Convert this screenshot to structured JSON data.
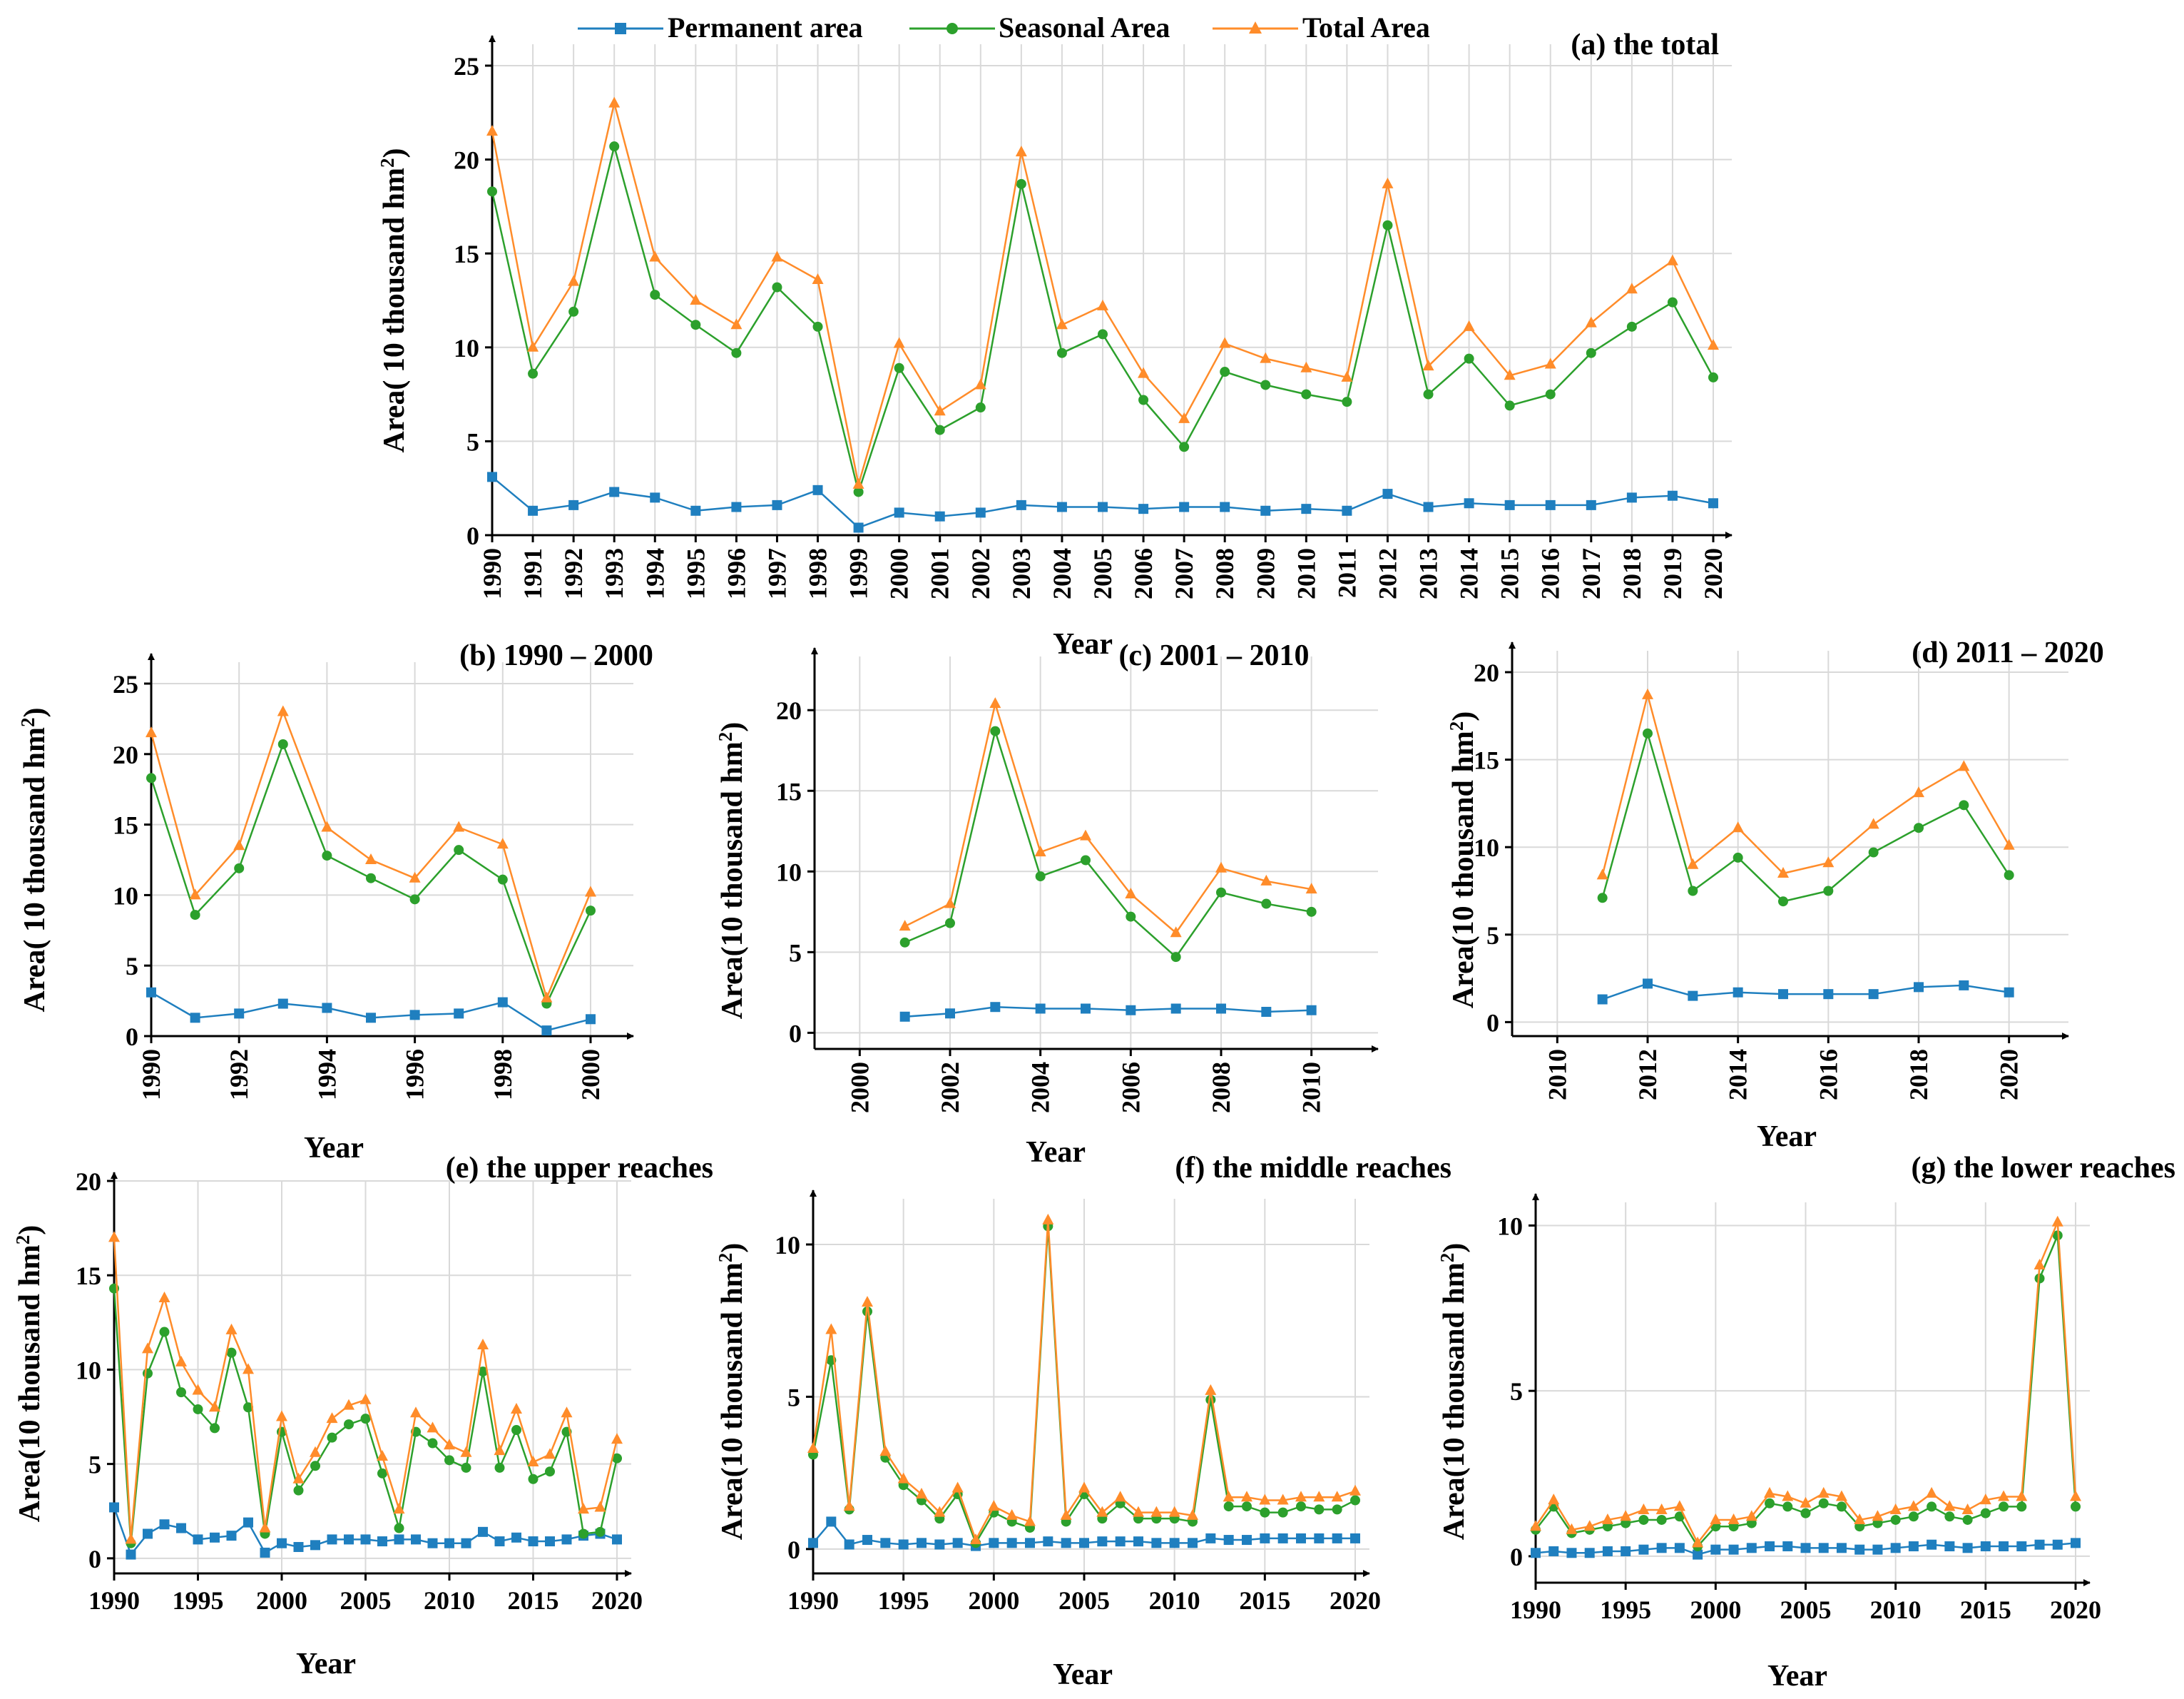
{
  "legend": {
    "items": [
      {
        "label": "Permanent area",
        "color": "#1f7fbf",
        "marker": "square"
      },
      {
        "label": "Seasonal Area",
        "color": "#2ca02c",
        "marker": "circle"
      },
      {
        "label": "Total Area",
        "color": "#ff8c2a",
        "marker": "triangle"
      }
    ]
  },
  "chart_data": [
    {
      "id": "a",
      "type": "line",
      "title": "(a) the total",
      "xlabel": "Year",
      "ylabel": "Area( 10 thousand hm",
      "xlim": [
        1990,
        2020
      ],
      "ylim": [
        0,
        25
      ],
      "xticks": [
        1990,
        1991,
        1992,
        1993,
        1994,
        1995,
        1996,
        1997,
        1998,
        1999,
        2000,
        2001,
        2002,
        2003,
        2004,
        2005,
        2006,
        2007,
        2008,
        2009,
        2010,
        2011,
        2012,
        2013,
        2014,
        2015,
        2016,
        2017,
        2018,
        2019,
        2020
      ],
      "yticks": [
        0,
        5,
        10,
        15,
        20,
        25
      ],
      "grid": true,
      "x": [
        1990,
        1991,
        1992,
        1993,
        1994,
        1995,
        1996,
        1997,
        1998,
        1999,
        2000,
        2001,
        2002,
        2003,
        2004,
        2005,
        2006,
        2007,
        2008,
        2009,
        2010,
        2011,
        2012,
        2013,
        2014,
        2015,
        2016,
        2017,
        2018,
        2019,
        2020
      ],
      "series": [
        {
          "name": "Permanent area",
          "values": [
            3.1,
            1.3,
            1.6,
            2.3,
            2.0,
            1.3,
            1.5,
            1.6,
            2.4,
            0.4,
            1.2,
            1.0,
            1.2,
            1.6,
            1.5,
            1.5,
            1.4,
            1.5,
            1.5,
            1.3,
            1.4,
            1.3,
            2.2,
            1.5,
            1.7,
            1.6,
            1.6,
            1.6,
            2.0,
            2.1,
            1.7
          ]
        },
        {
          "name": "Seasonal Area",
          "values": [
            18.3,
            8.6,
            11.9,
            20.7,
            12.8,
            11.2,
            9.7,
            13.2,
            11.1,
            2.3,
            8.9,
            5.6,
            6.8,
            18.7,
            9.7,
            10.7,
            7.2,
            4.7,
            8.7,
            8.0,
            7.5,
            7.1,
            16.5,
            7.5,
            9.4,
            6.9,
            7.5,
            9.7,
            11.1,
            12.4,
            8.4
          ]
        },
        {
          "name": "Total Area",
          "values": [
            21.5,
            10.0,
            13.5,
            23.0,
            14.8,
            12.5,
            11.2,
            14.8,
            13.6,
            2.7,
            10.2,
            6.6,
            8.0,
            20.4,
            11.2,
            12.2,
            8.6,
            6.2,
            10.2,
            9.4,
            8.9,
            8.4,
            18.7,
            9.0,
            11.1,
            8.5,
            9.1,
            11.3,
            13.1,
            14.6,
            10.1
          ]
        }
      ]
    },
    {
      "id": "b",
      "type": "line",
      "title": "(b) 1990 – 2000",
      "xlabel": "Year",
      "ylabel": "Area( 10 thousand hm",
      "xlim": [
        1990,
        2000
      ],
      "ylim": [
        0,
        25
      ],
      "xticks": [
        1990,
        1992,
        1994,
        1996,
        1998,
        2000
      ],
      "yticks": [
        0,
        5,
        10,
        15,
        20,
        25
      ],
      "grid": true,
      "x": [
        1990,
        1991,
        1992,
        1993,
        1994,
        1995,
        1996,
        1997,
        1998,
        1999,
        2000
      ],
      "series": [
        {
          "name": "Permanent area",
          "values": [
            3.1,
            1.3,
            1.6,
            2.3,
            2.0,
            1.3,
            1.5,
            1.6,
            2.4,
            0.4,
            1.2
          ]
        },
        {
          "name": "Seasonal Area",
          "values": [
            18.3,
            8.6,
            11.9,
            20.7,
            12.8,
            11.2,
            9.7,
            13.2,
            11.1,
            2.3,
            8.9
          ]
        },
        {
          "name": "Total Area",
          "values": [
            21.5,
            10.0,
            13.5,
            23.0,
            14.8,
            12.5,
            11.2,
            14.8,
            13.6,
            2.7,
            10.2
          ]
        }
      ]
    },
    {
      "id": "c",
      "type": "line",
      "title": "(c) 2001 – 2010",
      "xlabel": "Year",
      "ylabel": "Area(10 thousand hm",
      "xlim": [
        1999,
        2011
      ],
      "ylim": [
        -1,
        22
      ],
      "xticks": [
        2000,
        2002,
        2004,
        2006,
        2008,
        2010
      ],
      "yticks": [
        0,
        5,
        10,
        15,
        20
      ],
      "grid": true,
      "x": [
        2001,
        2002,
        2003,
        2004,
        2005,
        2006,
        2007,
        2008,
        2009,
        2010
      ],
      "series": [
        {
          "name": "Permanent area",
          "values": [
            1.0,
            1.2,
            1.6,
            1.5,
            1.5,
            1.4,
            1.5,
            1.5,
            1.3,
            1.4
          ]
        },
        {
          "name": "Seasonal Area",
          "values": [
            5.6,
            6.8,
            18.7,
            9.7,
            10.7,
            7.2,
            4.7,
            8.7,
            8.0,
            7.5
          ]
        },
        {
          "name": "Total Area",
          "values": [
            6.6,
            8.0,
            20.4,
            11.2,
            12.2,
            8.6,
            6.2,
            10.2,
            9.4,
            8.9
          ]
        }
      ]
    },
    {
      "id": "d",
      "type": "line",
      "title": "(d) 2011 – 2020",
      "xlabel": "Year",
      "ylabel": "Area(10 thousand hm",
      "xlim": [
        2009,
        2021
      ],
      "ylim": [
        -0.8,
        20
      ],
      "xticks": [
        2010,
        2012,
        2014,
        2016,
        2018,
        2020
      ],
      "yticks": [
        0,
        5,
        10,
        15,
        20
      ],
      "grid": true,
      "x": [
        2011,
        2012,
        2013,
        2014,
        2015,
        2016,
        2017,
        2018,
        2019,
        2020
      ],
      "series": [
        {
          "name": "Permanent area",
          "values": [
            1.3,
            2.2,
            1.5,
            1.7,
            1.6,
            1.6,
            1.6,
            2.0,
            2.1,
            1.7
          ]
        },
        {
          "name": "Seasonal Area",
          "values": [
            7.1,
            16.5,
            7.5,
            9.4,
            6.9,
            7.5,
            9.7,
            11.1,
            12.4,
            8.4
          ]
        },
        {
          "name": "Total Area",
          "values": [
            8.4,
            18.7,
            9.0,
            11.1,
            8.5,
            9.1,
            11.3,
            13.1,
            14.6,
            10.1
          ]
        }
      ]
    },
    {
      "id": "e",
      "type": "line",
      "title": "(e) the upper reaches",
      "xlabel": "Year",
      "ylabel": "Area(10 thousand hm",
      "xlim": [
        1990,
        2020
      ],
      "ylim": [
        -0.8,
        20
      ],
      "xticks": [
        1990,
        1995,
        2000,
        2005,
        2010,
        2015,
        2020
      ],
      "yticks": [
        0,
        5,
        10,
        15,
        20
      ],
      "grid": true,
      "x": [
        1990,
        1991,
        1992,
        1993,
        1994,
        1995,
        1996,
        1997,
        1998,
        1999,
        2000,
        2001,
        2002,
        2003,
        2004,
        2005,
        2006,
        2007,
        2008,
        2009,
        2010,
        2011,
        2012,
        2013,
        2014,
        2015,
        2016,
        2017,
        2018,
        2019,
        2020
      ],
      "series": [
        {
          "name": "Permanent area",
          "values": [
            2.7,
            0.2,
            1.3,
            1.8,
            1.6,
            1.0,
            1.1,
            1.2,
            1.9,
            0.3,
            0.8,
            0.6,
            0.7,
            1.0,
            1.0,
            1.0,
            0.9,
            1.0,
            1.0,
            0.8,
            0.8,
            0.8,
            1.4,
            0.9,
            1.1,
            0.9,
            0.9,
            1.0,
            1.2,
            1.3,
            1.0
          ]
        },
        {
          "name": "Seasonal Area",
          "values": [
            14.3,
            0.8,
            9.8,
            12.0,
            8.8,
            7.9,
            6.9,
            10.9,
            8.0,
            1.3,
            6.7,
            3.6,
            4.9,
            6.4,
            7.1,
            7.4,
            4.5,
            1.6,
            6.7,
            6.1,
            5.2,
            4.8,
            9.9,
            4.8,
            6.8,
            4.2,
            4.6,
            6.7,
            1.3,
            1.4,
            5.3
          ]
        },
        {
          "name": "Total Area",
          "values": [
            17.0,
            1.0,
            11.1,
            13.8,
            10.4,
            8.9,
            8.0,
            12.1,
            10.0,
            1.6,
            7.5,
            4.2,
            5.6,
            7.4,
            8.1,
            8.4,
            5.4,
            2.6,
            7.7,
            6.9,
            6.0,
            5.6,
            11.3,
            5.7,
            7.9,
            5.1,
            5.5,
            7.7,
            2.6,
            2.7,
            6.3
          ]
        }
      ]
    },
    {
      "id": "f",
      "type": "line",
      "title": "(f) the middle reaches",
      "xlabel": "Year",
      "ylabel": "Area(10 thousand hm",
      "xlim": [
        1990,
        2020
      ],
      "ylim": [
        -0.8,
        11.5
      ],
      "xticks": [
        1990,
        1995,
        2000,
        2005,
        2010,
        2015,
        2020
      ],
      "yticks": [
        0,
        5,
        10
      ],
      "grid": true,
      "x": [
        1990,
        1991,
        1992,
        1993,
        1994,
        1995,
        1996,
        1997,
        1998,
        1999,
        2000,
        2001,
        2002,
        2003,
        2004,
        2005,
        2006,
        2007,
        2008,
        2009,
        2010,
        2011,
        2012,
        2013,
        2014,
        2015,
        2016,
        2017,
        2018,
        2019,
        2020
      ],
      "series": [
        {
          "name": "Permanent area",
          "values": [
            0.2,
            0.9,
            0.15,
            0.3,
            0.2,
            0.15,
            0.2,
            0.15,
            0.2,
            0.1,
            0.2,
            0.2,
            0.2,
            0.25,
            0.2,
            0.2,
            0.25,
            0.25,
            0.25,
            0.2,
            0.2,
            0.2,
            0.35,
            0.3,
            0.3,
            0.35,
            0.35,
            0.35,
            0.35,
            0.35,
            0.35
          ]
        },
        {
          "name": "Seasonal Area",
          "values": [
            3.1,
            6.2,
            1.3,
            7.8,
            3.0,
            2.1,
            1.6,
            1.0,
            1.8,
            0.2,
            1.2,
            0.9,
            0.7,
            10.6,
            0.9,
            1.8,
            1.0,
            1.5,
            1.0,
            1.0,
            1.0,
            0.9,
            4.9,
            1.4,
            1.4,
            1.2,
            1.2,
            1.4,
            1.3,
            1.3,
            1.6
          ]
        },
        {
          "name": "Total Area",
          "values": [
            3.3,
            7.2,
            1.4,
            8.1,
            3.2,
            2.3,
            1.8,
            1.2,
            2.0,
            0.3,
            1.4,
            1.1,
            0.9,
            10.8,
            1.1,
            2.0,
            1.2,
            1.7,
            1.2,
            1.2,
            1.2,
            1.1,
            5.2,
            1.7,
            1.7,
            1.6,
            1.6,
            1.7,
            1.7,
            1.7,
            1.9
          ]
        }
      ]
    },
    {
      "id": "g",
      "type": "line",
      "title": "(g) the lower reaches",
      "xlabel": "Year",
      "ylabel": "Area(10 thousand hm",
      "xlim": [
        1990,
        2020
      ],
      "ylim": [
        -0.8,
        10.7
      ],
      "xticks": [
        1990,
        1995,
        2000,
        2005,
        2010,
        2015,
        2020
      ],
      "yticks": [
        0,
        5,
        10
      ],
      "grid": true,
      "x": [
        1990,
        1991,
        1992,
        1993,
        1994,
        1995,
        1996,
        1997,
        1998,
        1999,
        2000,
        2001,
        2002,
        2003,
        2004,
        2005,
        2006,
        2007,
        2008,
        2009,
        2010,
        2011,
        2012,
        2013,
        2014,
        2015,
        2016,
        2017,
        2018,
        2019,
        2020
      ],
      "series": [
        {
          "name": "Permanent area",
          "values": [
            0.1,
            0.15,
            0.1,
            0.1,
            0.15,
            0.15,
            0.2,
            0.25,
            0.25,
            0.05,
            0.2,
            0.2,
            0.25,
            0.3,
            0.3,
            0.25,
            0.25,
            0.25,
            0.2,
            0.2,
            0.25,
            0.3,
            0.35,
            0.3,
            0.25,
            0.3,
            0.3,
            0.3,
            0.35,
            0.35,
            0.4
          ]
        },
        {
          "name": "Seasonal Area",
          "values": [
            0.8,
            1.5,
            0.7,
            0.8,
            0.9,
            1.0,
            1.1,
            1.1,
            1.2,
            0.3,
            0.9,
            0.9,
            1.0,
            1.6,
            1.5,
            1.3,
            1.6,
            1.5,
            0.9,
            1.0,
            1.1,
            1.2,
            1.5,
            1.2,
            1.1,
            1.3,
            1.5,
            1.5,
            8.4,
            9.7,
            1.5
          ]
        },
        {
          "name": "Total Area",
          "values": [
            0.9,
            1.7,
            0.8,
            0.9,
            1.1,
            1.2,
            1.4,
            1.4,
            1.5,
            0.4,
            1.1,
            1.1,
            1.2,
            1.9,
            1.8,
            1.6,
            1.9,
            1.8,
            1.1,
            1.2,
            1.4,
            1.5,
            1.9,
            1.5,
            1.4,
            1.7,
            1.8,
            1.8,
            8.8,
            10.1,
            1.8
          ]
        }
      ]
    }
  ]
}
